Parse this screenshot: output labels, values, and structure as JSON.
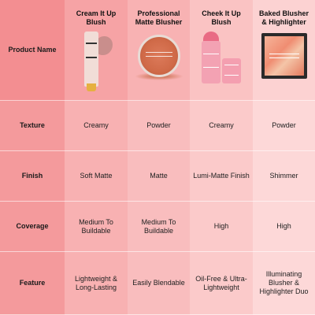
{
  "header": {
    "label": "Product Name",
    "products": [
      {
        "name": "Cream It Up Blush",
        "icon": "cream-tube-icon"
      },
      {
        "name": "Professional Matte Blusher",
        "icon": "compact-icon"
      },
      {
        "name": "Cheek It Up Blush",
        "icon": "blush-stick-icon"
      },
      {
        "name": "Baked Blusher & Highlighter",
        "icon": "palette-icon"
      }
    ]
  },
  "rows": [
    {
      "label": "Texture",
      "values": [
        "Creamy",
        "Powder",
        "Creamy",
        "Powder"
      ]
    },
    {
      "label": "Finish",
      "values": [
        "Soft Matte",
        "Matte",
        "Lumi-Matte Finish",
        "Shimmer"
      ]
    },
    {
      "label": "Coverage",
      "values": [
        "Medium To Buildable",
        "Medium To Buildable",
        "High",
        "High"
      ]
    },
    {
      "label": "Feature",
      "values": [
        "Lightweight & Long-Lasting",
        "Easily Blendable",
        "Oil-Free & Ultra-Lightweight",
        "Illuminating Blusher & Highlighter Duo"
      ]
    }
  ]
}
